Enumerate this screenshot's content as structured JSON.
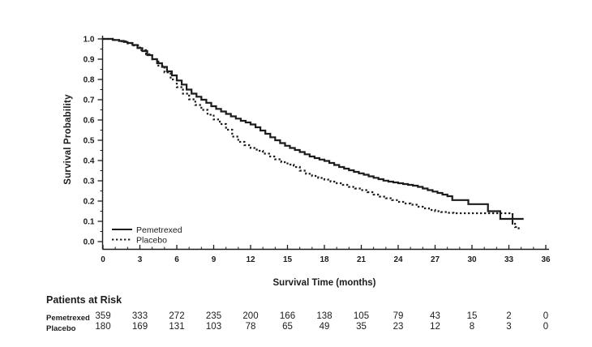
{
  "page": {
    "background": "#ffffff",
    "ink_color": "#1c1c1c"
  },
  "chart_data": {
    "type": "line",
    "subtype": "kaplan-meier-step",
    "title": "",
    "xlabel": "Survival Time (months)",
    "ylabel": "Survival Probability",
    "xlim": [
      0,
      36
    ],
    "ylim": [
      0.0,
      1.0
    ],
    "grid": false,
    "x_ticks": [
      0,
      3,
      6,
      9,
      12,
      15,
      18,
      21,
      24,
      27,
      30,
      33,
      36
    ],
    "x_minor_tick_step": 1,
    "y_tick_labels": [
      "0.0",
      "0.1",
      "0.2",
      "0.3",
      "0.4",
      "0.5",
      "0.6",
      "0.7",
      "0.8",
      "0.9",
      "1.0"
    ],
    "y_minor_tick_step": 0.05,
    "legend": {
      "position": "inside-bottom-left",
      "items": [
        {
          "label": "Pemetrexed",
          "line_style": "solid"
        },
        {
          "label": "Placebo",
          "line_style": "dotted"
        }
      ]
    },
    "series": [
      {
        "name": "Pemetrexed",
        "line_style": "solid",
        "points": [
          [
            0,
            1.0
          ],
          [
            0.8,
            0.995
          ],
          [
            1.3,
            0.99
          ],
          [
            1.7,
            0.985
          ],
          [
            2.0,
            0.98
          ],
          [
            2.4,
            0.97
          ],
          [
            2.8,
            0.955
          ],
          [
            3.2,
            0.94
          ],
          [
            3.6,
            0.92
          ],
          [
            4.0,
            0.9
          ],
          [
            4.4,
            0.88
          ],
          [
            4.8,
            0.862
          ],
          [
            5.2,
            0.84
          ],
          [
            5.6,
            0.82
          ],
          [
            6.0,
            0.795
          ],
          [
            6.4,
            0.775
          ],
          [
            6.8,
            0.75
          ],
          [
            7.2,
            0.73
          ],
          [
            7.6,
            0.715
          ],
          [
            8.0,
            0.7
          ],
          [
            8.4,
            0.685
          ],
          [
            8.8,
            0.668
          ],
          [
            9.2,
            0.655
          ],
          [
            9.6,
            0.642
          ],
          [
            10.0,
            0.63
          ],
          [
            10.4,
            0.618
          ],
          [
            10.8,
            0.607
          ],
          [
            11.2,
            0.596
          ],
          [
            11.6,
            0.588
          ],
          [
            12.0,
            0.578
          ],
          [
            12.4,
            0.564
          ],
          [
            12.8,
            0.548
          ],
          [
            13.2,
            0.532
          ],
          [
            13.6,
            0.515
          ],
          [
            14.0,
            0.5
          ],
          [
            14.4,
            0.486
          ],
          [
            14.8,
            0.473
          ],
          [
            15.2,
            0.462
          ],
          [
            15.6,
            0.452
          ],
          [
            16.0,
            0.442
          ],
          [
            16.4,
            0.431
          ],
          [
            16.8,
            0.42
          ],
          [
            17.2,
            0.412
          ],
          [
            17.6,
            0.405
          ],
          [
            18.0,
            0.398
          ],
          [
            18.4,
            0.388
          ],
          [
            18.8,
            0.378
          ],
          [
            19.2,
            0.368
          ],
          [
            19.6,
            0.36
          ],
          [
            20.0,
            0.352
          ],
          [
            20.4,
            0.344
          ],
          [
            20.8,
            0.337
          ],
          [
            21.2,
            0.33
          ],
          [
            21.6,
            0.322
          ],
          [
            22.0,
            0.315
          ],
          [
            22.4,
            0.308
          ],
          [
            22.8,
            0.301
          ],
          [
            23.2,
            0.296
          ],
          [
            23.6,
            0.292
          ],
          [
            24.0,
            0.288
          ],
          [
            24.4,
            0.284
          ],
          [
            24.8,
            0.28
          ],
          [
            25.2,
            0.276
          ],
          [
            25.6,
            0.27
          ],
          [
            26.0,
            0.262
          ],
          [
            26.4,
            0.254
          ],
          [
            26.8,
            0.247
          ],
          [
            27.2,
            0.24
          ],
          [
            27.6,
            0.232
          ],
          [
            28.0,
            0.224
          ],
          [
            28.4,
            0.205
          ],
          [
            29.7,
            0.185
          ],
          [
            31.3,
            0.15
          ],
          [
            32.3,
            0.112
          ],
          [
            34.2,
            0.112
          ]
        ],
        "censor_marks": [
          [
            33.3,
            0.112
          ]
        ]
      },
      {
        "name": "Placebo",
        "line_style": "dotted",
        "points": [
          [
            0,
            1.0
          ],
          [
            0.8,
            0.995
          ],
          [
            1.4,
            0.988
          ],
          [
            2.0,
            0.978
          ],
          [
            2.5,
            0.968
          ],
          [
            3.0,
            0.945
          ],
          [
            3.5,
            0.924
          ],
          [
            4.0,
            0.9
          ],
          [
            4.5,
            0.868
          ],
          [
            5.0,
            0.835
          ],
          [
            5.5,
            0.8
          ],
          [
            6.0,
            0.762
          ],
          [
            6.5,
            0.73
          ],
          [
            7.0,
            0.702
          ],
          [
            7.5,
            0.674
          ],
          [
            8.0,
            0.65
          ],
          [
            8.5,
            0.626
          ],
          [
            9.0,
            0.603
          ],
          [
            9.5,
            0.58
          ],
          [
            10.0,
            0.552
          ],
          [
            10.5,
            0.518
          ],
          [
            11.0,
            0.492
          ],
          [
            11.5,
            0.476
          ],
          [
            12.0,
            0.462
          ],
          [
            12.5,
            0.448
          ],
          [
            13.0,
            0.434
          ],
          [
            13.5,
            0.42
          ],
          [
            14.0,
            0.406
          ],
          [
            14.5,
            0.392
          ],
          [
            15.0,
            0.38
          ],
          [
            15.5,
            0.368
          ],
          [
            16.0,
            0.35
          ],
          [
            16.5,
            0.335
          ],
          [
            17.0,
            0.324
          ],
          [
            17.5,
            0.314
          ],
          [
            18.0,
            0.306
          ],
          [
            18.5,
            0.296
          ],
          [
            19.0,
            0.288
          ],
          [
            19.5,
            0.28
          ],
          [
            20.0,
            0.27
          ],
          [
            20.5,
            0.262
          ],
          [
            21.0,
            0.254
          ],
          [
            21.5,
            0.244
          ],
          [
            22.0,
            0.232
          ],
          [
            22.5,
            0.222
          ],
          [
            23.0,
            0.214
          ],
          [
            23.5,
            0.205
          ],
          [
            24.0,
            0.196
          ],
          [
            24.5,
            0.188
          ],
          [
            25.0,
            0.182
          ],
          [
            25.5,
            0.172
          ],
          [
            26.0,
            0.164
          ],
          [
            26.5,
            0.156
          ],
          [
            27.0,
            0.15
          ],
          [
            27.5,
            0.146
          ],
          [
            28.0,
            0.142
          ],
          [
            28.5,
            0.14
          ],
          [
            33.1,
            0.14
          ],
          [
            33.3,
            0.095
          ],
          [
            33.5,
            0.072
          ],
          [
            33.8,
            0.056
          ]
        ],
        "censor_marks": []
      }
    ]
  },
  "risk_table": {
    "title": "Patients at Risk",
    "time_points": [
      0,
      3,
      6,
      9,
      12,
      15,
      18,
      21,
      24,
      27,
      30,
      33,
      36
    ],
    "rows": [
      {
        "label": "Pemetrexed",
        "values": [
          359,
          333,
          272,
          235,
          200,
          166,
          138,
          105,
          79,
          43,
          15,
          2,
          0
        ]
      },
      {
        "label": "Placebo",
        "values": [
          180,
          169,
          131,
          103,
          78,
          65,
          49,
          35,
          23,
          12,
          8,
          3,
          0
        ]
      }
    ]
  }
}
